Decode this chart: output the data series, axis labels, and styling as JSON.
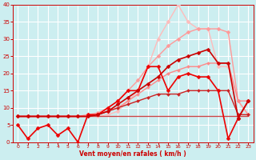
{
  "xlabel": "Vent moyen/en rafales ( km/h )",
  "xlim": [
    -0.5,
    23.5
  ],
  "ylim": [
    0,
    40
  ],
  "xticks": [
    0,
    1,
    2,
    3,
    4,
    5,
    6,
    7,
    8,
    9,
    10,
    11,
    12,
    13,
    14,
    15,
    16,
    17,
    18,
    19,
    20,
    21,
    22,
    23
  ],
  "yticks": [
    0,
    5,
    10,
    15,
    20,
    25,
    30,
    35,
    40
  ],
  "background_color": "#cceef0",
  "grid_color": "#ffffff",
  "axis_color": "#cc0000",
  "lines": [
    {
      "x": [
        0,
        1,
        2,
        3,
        4,
        5,
        6,
        7,
        8,
        9,
        10,
        11,
        12,
        13,
        14,
        15,
        16,
        17,
        18,
        19,
        20,
        21,
        22,
        23
      ],
      "y": [
        7.5,
        7.5,
        7.5,
        7.5,
        7.5,
        7.5,
        7.5,
        7.5,
        7.5,
        7.5,
        7.5,
        7.5,
        7.5,
        7.5,
        7.5,
        7.5,
        7.5,
        7.5,
        7.5,
        7.5,
        7.5,
        7.5,
        7.5,
        7.5
      ],
      "color": "#ffbbbb",
      "lw": 0.9,
      "marker": null
    },
    {
      "x": [
        0,
        1,
        2,
        3,
        4,
        5,
        6,
        7,
        8,
        9,
        10,
        11,
        12,
        13,
        14,
        15,
        16,
        17,
        18,
        19,
        20,
        21,
        22,
        23
      ],
      "y": [
        7.5,
        7.5,
        7.5,
        7.5,
        7.5,
        7.5,
        7.5,
        7.5,
        7.5,
        8,
        9,
        12,
        15,
        22,
        30,
        35,
        40,
        35,
        33,
        33,
        22,
        22,
        12,
        8
      ],
      "color": "#ffbbbb",
      "lw": 1.0,
      "marker": "D",
      "ms": 2.5
    },
    {
      "x": [
        0,
        1,
        2,
        3,
        4,
        5,
        6,
        7,
        8,
        9,
        10,
        11,
        12,
        13,
        14,
        15,
        16,
        17,
        18,
        19,
        20,
        21,
        22,
        23
      ],
      "y": [
        7.5,
        7.5,
        7.5,
        7.5,
        7.5,
        7.5,
        7.5,
        8,
        8.5,
        10,
        12,
        15,
        18,
        22,
        25,
        28,
        30,
        32,
        33,
        33,
        33,
        32,
        12,
        8
      ],
      "color": "#ff9999",
      "lw": 1.0,
      "marker": "D",
      "ms": 2.5
    },
    {
      "x": [
        0,
        1,
        2,
        3,
        4,
        5,
        6,
        7,
        8,
        9,
        10,
        11,
        12,
        13,
        14,
        15,
        16,
        17,
        18,
        19,
        20,
        21,
        22,
        23
      ],
      "y": [
        7.5,
        7.5,
        7.5,
        7.5,
        7.5,
        7.5,
        7.5,
        7.5,
        8,
        9,
        10,
        12,
        14,
        16,
        18,
        20,
        21,
        22,
        22,
        23,
        23,
        23,
        12,
        12
      ],
      "color": "#ff8888",
      "lw": 1.0,
      "marker": "D",
      "ms": 2.0
    },
    {
      "x": [
        0,
        1,
        2,
        3,
        4,
        5,
        6,
        7,
        8,
        9,
        10,
        11,
        12,
        13,
        14,
        15,
        16,
        17,
        18,
        19,
        20,
        21,
        22,
        23
      ],
      "y": [
        7.5,
        7.5,
        7.5,
        7.5,
        7.5,
        7.5,
        7.5,
        7.5,
        7.5,
        7.5,
        7.5,
        7.5,
        7.5,
        7.5,
        7.5,
        7.5,
        7.5,
        7.5,
        7.5,
        7.5,
        7.5,
        7.5,
        7.5,
        7.5
      ],
      "color": "#cc4444",
      "lw": 0.9,
      "marker": null
    },
    {
      "x": [
        0,
        1,
        2,
        3,
        4,
        5,
        6,
        7,
        8,
        9,
        10,
        11,
        12,
        13,
        14,
        15,
        16,
        17,
        18,
        19,
        20,
        21,
        22,
        23
      ],
      "y": [
        7.5,
        7.5,
        7.5,
        7.5,
        7.5,
        7.5,
        7.5,
        7.5,
        8,
        9,
        10,
        11,
        12,
        13,
        14,
        14,
        14,
        15,
        15,
        15,
        15,
        15,
        8,
        8
      ],
      "color": "#cc2222",
      "lw": 1.0,
      "marker": "D",
      "ms": 2.0
    },
    {
      "x": [
        0,
        1,
        2,
        3,
        4,
        5,
        6,
        7,
        8,
        9,
        10,
        11,
        12,
        13,
        14,
        15,
        16,
        17,
        18,
        19,
        20,
        21,
        22,
        23
      ],
      "y": [
        5,
        1,
        4,
        5,
        2,
        4,
        0,
        8,
        8,
        10,
        12,
        15,
        15,
        22,
        22,
        15,
        19,
        20,
        19,
        19,
        15,
        1,
        7,
        12
      ],
      "color": "#ee0000",
      "lw": 1.2,
      "marker": "D",
      "ms": 2.5
    },
    {
      "x": [
        0,
        1,
        2,
        3,
        4,
        5,
        6,
        7,
        8,
        9,
        10,
        11,
        12,
        13,
        14,
        15,
        16,
        17,
        18,
        19,
        20,
        21,
        22,
        23
      ],
      "y": [
        7.5,
        7.5,
        7.5,
        7.5,
        7.5,
        7.5,
        7.5,
        7.5,
        8,
        9,
        11,
        13,
        15,
        17,
        19,
        22,
        24,
        25,
        26,
        27,
        23,
        23,
        7,
        12
      ],
      "color": "#cc0000",
      "lw": 1.2,
      "marker": "D",
      "ms": 2.5
    }
  ]
}
